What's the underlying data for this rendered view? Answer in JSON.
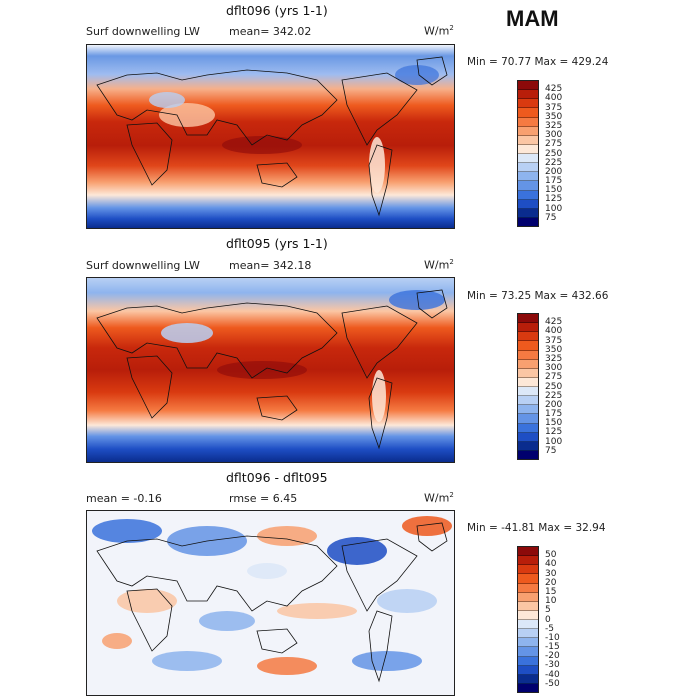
{
  "season": "MAM",
  "panels": [
    {
      "title": "dflt096 (yrs 1-1)",
      "left_label": "Surf downwelling LW",
      "mid_label": "mean= 342.02",
      "units": "W/m",
      "units_sup": "2",
      "minmax": "Min =  70.77 Max = 429.24",
      "levels": [
        "425",
        "400",
        "375",
        "350",
        "325",
        "300",
        "275",
        "250",
        "225",
        "200",
        "175",
        "150",
        "125",
        "100",
        "75"
      ],
      "colors": [
        "#8c0a0a",
        "#b81e0a",
        "#d93a10",
        "#ee5a1e",
        "#f57a42",
        "#f8a070",
        "#fbc6a4",
        "#fde8d8",
        "#dce8f8",
        "#b8d0f4",
        "#8eb4ee",
        "#6494e6",
        "#3a72dc",
        "#1e4ec4",
        "#0a2c8e",
        "#00006e"
      ]
    },
    {
      "title": "dflt095 (yrs 1-1)",
      "left_label": "Surf downwelling LW",
      "mid_label": "mean= 342.18",
      "units": "W/m",
      "units_sup": "2",
      "minmax": "Min =  73.25 Max = 432.66",
      "levels": [
        "425",
        "400",
        "375",
        "350",
        "325",
        "300",
        "275",
        "250",
        "225",
        "200",
        "175",
        "150",
        "125",
        "100",
        "75"
      ],
      "colors": [
        "#8c0a0a",
        "#b81e0a",
        "#d93a10",
        "#ee5a1e",
        "#f57a42",
        "#f8a070",
        "#fbc6a4",
        "#fde8d8",
        "#dce8f8",
        "#b8d0f4",
        "#8eb4ee",
        "#6494e6",
        "#3a72dc",
        "#1e4ec4",
        "#0a2c8e",
        "#00006e"
      ]
    },
    {
      "title": "dflt096 - dflt095",
      "left_label": "mean =   -0.16",
      "mid_label": "rmse =    6.45",
      "units": "W/m",
      "units_sup": "2",
      "minmax": "Min = -41.81 Max =  32.94",
      "levels": [
        "50",
        "40",
        "30",
        "20",
        "15",
        "10",
        "5",
        "0",
        "-5",
        "-10",
        "-15",
        "-20",
        "-30",
        "-40",
        "-50"
      ],
      "colors": [
        "#8c0a0a",
        "#b81e0a",
        "#d93a10",
        "#ee5a1e",
        "#f57a42",
        "#f8a070",
        "#fbc6a4",
        "#fde8d8",
        "#dce8f8",
        "#b8d0f4",
        "#8eb4ee",
        "#6494e6",
        "#3a72dc",
        "#1e4ec4",
        "#0a2c8e",
        "#00006e"
      ]
    }
  ]
}
